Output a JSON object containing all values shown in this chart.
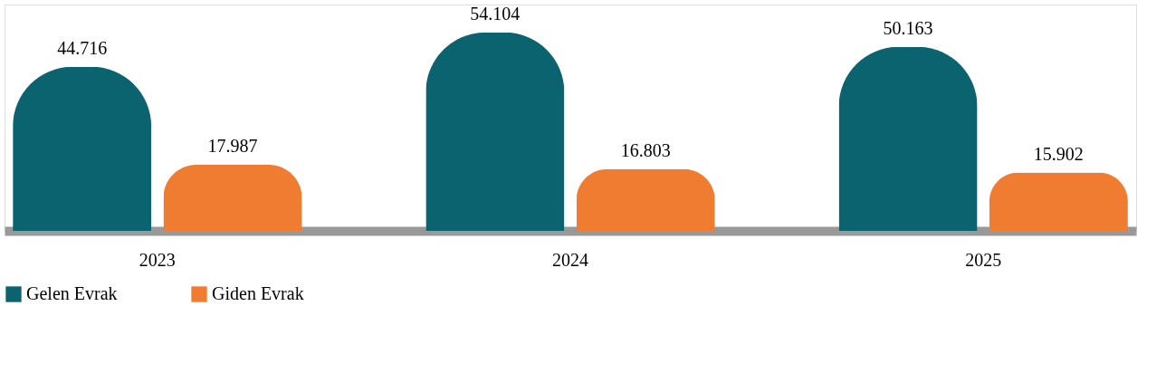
{
  "chart_data": {
    "type": "bar",
    "categories": [
      "2023",
      "2024",
      "2025"
    ],
    "series": [
      {
        "name": "Gelen Evrak",
        "color": "#0c6370",
        "values": [
          44716,
          54104,
          50163
        ],
        "value_labels": [
          "44.716",
          "54.104",
          "50.163"
        ]
      },
      {
        "name": "Giden Evrak",
        "color": "#f07c32",
        "values": [
          17987,
          16803,
          15902
        ],
        "value_labels": [
          "17.987",
          "16.803",
          "15.902"
        ]
      }
    ],
    "legend": "bottom",
    "grid": false
  }
}
